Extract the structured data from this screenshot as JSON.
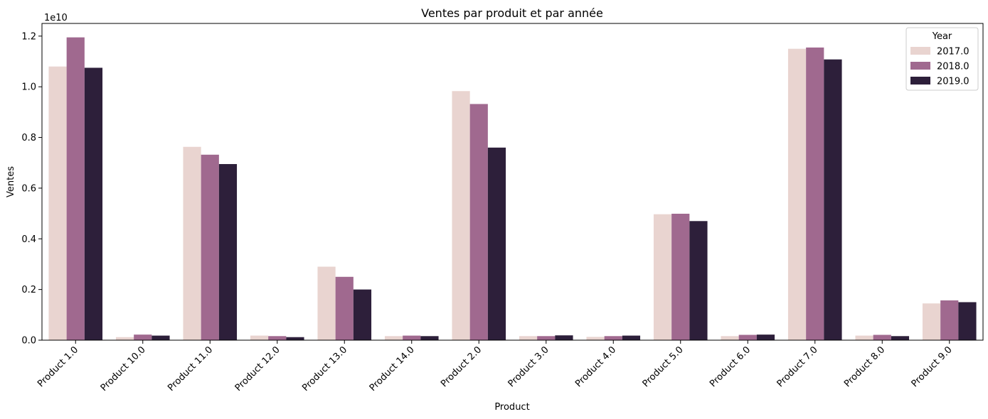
{
  "chart_data": {
    "type": "bar",
    "title": "Ventes par produit et par année",
    "xlabel": "Product",
    "ylabel": "Ventes",
    "y_offset_label": "1e10",
    "y_scale": 10000000000,
    "ylim": [
      0,
      1.25
    ],
    "yticks": [
      0.0,
      0.2,
      0.4,
      0.6,
      0.8,
      1.0,
      1.2
    ],
    "ytick_labels": [
      "0.0",
      "0.2",
      "0.4",
      "0.6",
      "0.8",
      "1.0",
      "1.2"
    ],
    "grid": false,
    "legend": {
      "title": "Year",
      "position": "top-right"
    },
    "categories": [
      "Product 1.0",
      "Product 10.0",
      "Product 11.0",
      "Product 12.0",
      "Product 13.0",
      "Product 14.0",
      "Product 2.0",
      "Product 3.0",
      "Product 4.0",
      "Product 5.0",
      "Product 6.0",
      "Product 7.0",
      "Product 8.0",
      "Product 9.0"
    ],
    "series": [
      {
        "name": "2017.0",
        "color": "#e9d4d0",
        "values": [
          1.08,
          0.012,
          0.763,
          0.018,
          0.29,
          0.016,
          0.983,
          0.016,
          0.013,
          0.497,
          0.016,
          1.15,
          0.018,
          0.145
        ]
      },
      {
        "name": "2018.0",
        "color": "#a0698f",
        "values": [
          1.195,
          0.022,
          0.732,
          0.016,
          0.25,
          0.018,
          0.932,
          0.016,
          0.016,
          0.499,
          0.021,
          1.155,
          0.021,
          0.157
        ]
      },
      {
        "name": "2019.0",
        "color": "#2d1f3a",
        "values": [
          1.075,
          0.018,
          0.695,
          0.012,
          0.2,
          0.016,
          0.76,
          0.019,
          0.018,
          0.47,
          0.022,
          1.108,
          0.016,
          0.15
        ]
      }
    ]
  }
}
